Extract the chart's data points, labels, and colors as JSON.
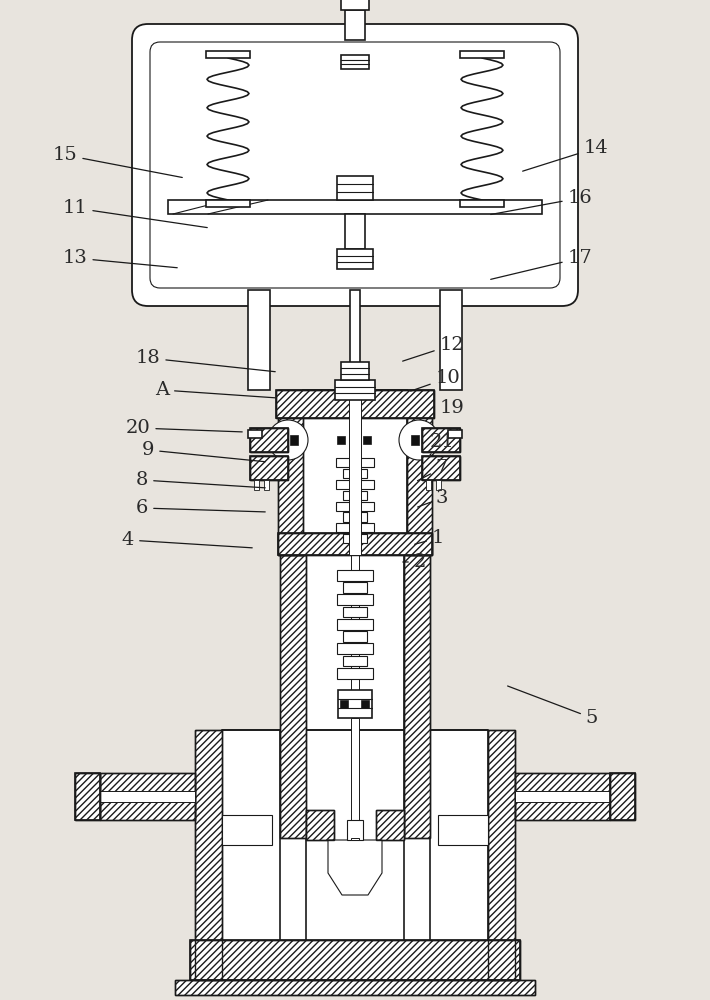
{
  "bg_color": "#e8e4de",
  "line_color": "#1a1a1a",
  "figsize": [
    7.1,
    10.0
  ],
  "dpi": 100,
  "label_fontsize": 14,
  "label_color": "#2a2a2a",
  "leader_color": "#1a1a1a",
  "label_data": [
    [
      "15",
      65,
      155,
      185,
      178
    ],
    [
      "11",
      75,
      208,
      210,
      228
    ],
    [
      "13",
      75,
      258,
      180,
      268
    ],
    [
      "14",
      596,
      148,
      520,
      172
    ],
    [
      "16",
      580,
      198,
      488,
      215
    ],
    [
      "17",
      580,
      258,
      488,
      280
    ],
    [
      "18",
      148,
      358,
      278,
      372
    ],
    [
      "A",
      162,
      390,
      278,
      398
    ],
    [
      "20",
      138,
      428,
      245,
      432
    ],
    [
      "12",
      452,
      345,
      400,
      362
    ],
    [
      "10",
      448,
      378,
      408,
      392
    ],
    [
      "19",
      452,
      408,
      432,
      420
    ],
    [
      "9",
      148,
      450,
      268,
      462
    ],
    [
      "21",
      442,
      442,
      430,
      455
    ],
    [
      "8",
      142,
      480,
      268,
      488
    ],
    [
      "7",
      442,
      468,
      415,
      482
    ],
    [
      "6",
      142,
      508,
      268,
      512
    ],
    [
      "3",
      442,
      498,
      415,
      508
    ],
    [
      "4",
      128,
      540,
      255,
      548
    ],
    [
      "1",
      438,
      538,
      412,
      545
    ],
    [
      "2",
      420,
      562,
      400,
      562
    ],
    [
      "5",
      592,
      718,
      505,
      685
    ]
  ]
}
